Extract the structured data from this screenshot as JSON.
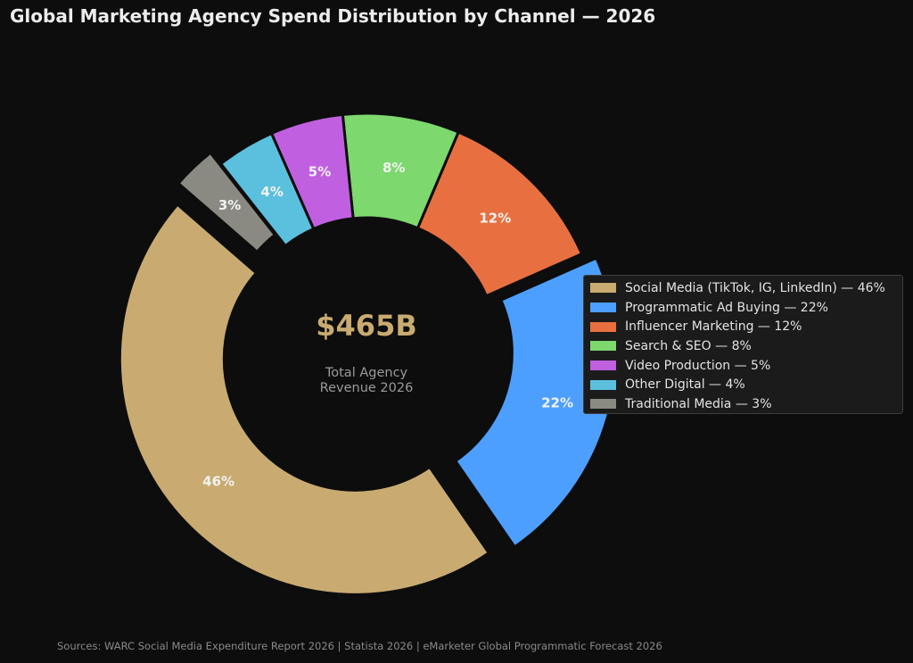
{
  "chart_data": {
    "type": "pie",
    "title": "Global Marketing Agency Spend Distribution by Channel — 2026",
    "center": {
      "value": "$465B",
      "caption_lines": [
        "Total Agency",
        "Revenue 2026"
      ]
    },
    "slices": [
      {
        "name": "Social Media (TikTok, IG, LinkedIn)",
        "value": 46,
        "label": "46%",
        "legend": "Social Media (TikTok, IG, LinkedIn) — 46%",
        "color": "#c9ab71",
        "exploded": true
      },
      {
        "name": "Programmatic Ad Buying",
        "value": 22,
        "label": "22%",
        "legend": "Programmatic Ad Buying — 22%",
        "color": "#4d9fff",
        "exploded": true
      },
      {
        "name": "Influencer Marketing",
        "value": 12,
        "label": "12%",
        "legend": "Influencer Marketing — 12%",
        "color": "#e87040",
        "exploded": false
      },
      {
        "name": "Search & SEO",
        "value": 8,
        "label": "8%",
        "legend": "Search & SEO — 8%",
        "color": "#7dd86e",
        "exploded": false
      },
      {
        "name": "Video Production",
        "value": 5,
        "label": "5%",
        "legend": "Video Production — 5%",
        "color": "#c060e0",
        "exploded": false
      },
      {
        "name": "Other Digital",
        "value": 4,
        "label": "4%",
        "legend": "Other Digital — 4%",
        "color": "#5bc0de",
        "exploded": false
      },
      {
        "name": "Traditional Media",
        "value": 3,
        "label": "3%",
        "legend": "Traditional Media — 3%",
        "color": "#8a8a82",
        "exploded": true
      }
    ],
    "legend_position": "right",
    "source": "Sources: WARC Social Media Expenditure Report 2026 | Statista 2026 | eMarketer Global Programmatic Forecast 2026"
  },
  "colors": {
    "background": "#0d0d0d",
    "center_value": "#c9ab71"
  }
}
